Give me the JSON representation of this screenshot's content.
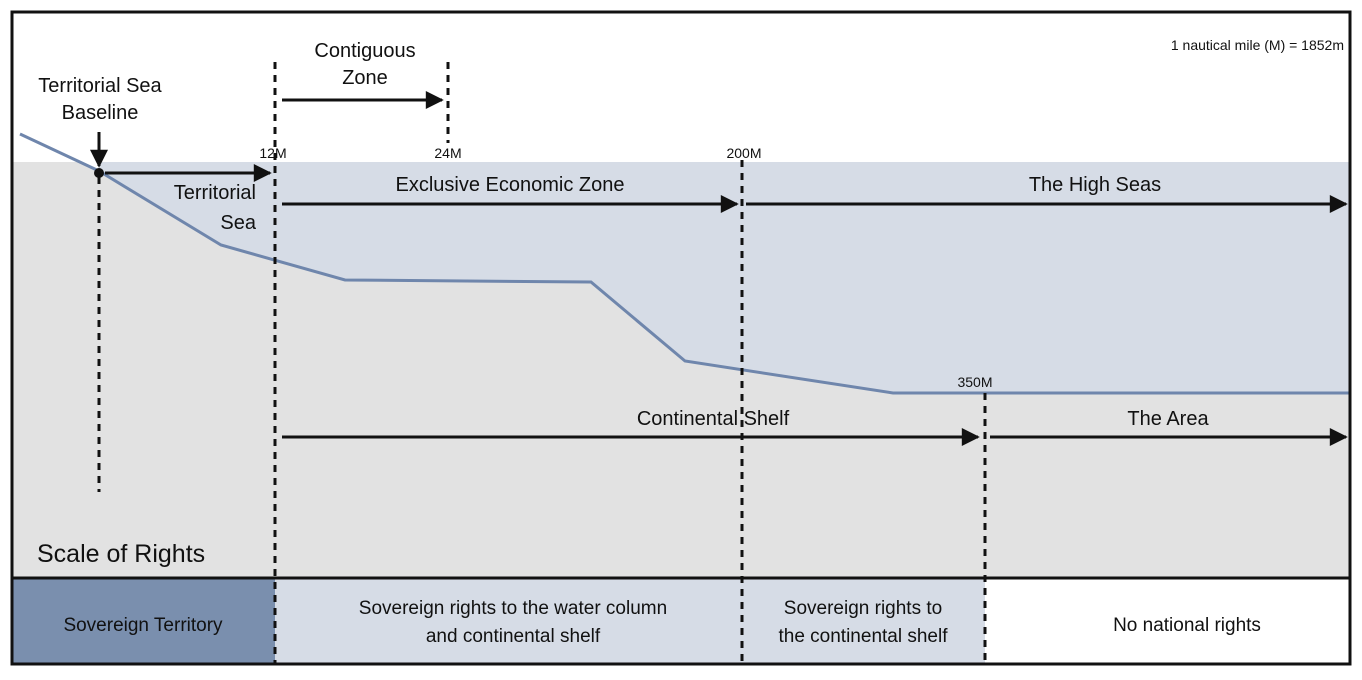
{
  "scale_note": "1 nautical mile (M) = 1852m",
  "baseline_label": [
    "Territorial Sea",
    "Baseline"
  ],
  "contiguous_label": [
    "Contiguous",
    "Zone"
  ],
  "markers": {
    "m12": "12M",
    "m24": "24M",
    "m200": "200M",
    "m350": "350M"
  },
  "zones": {
    "territorial_sea": [
      "Territorial",
      "Sea"
    ],
    "eez": "Exclusive Economic Zone",
    "high_seas": "The High Seas",
    "continental_shelf": "Continental Shelf",
    "the_area": "The Area"
  },
  "scale_of_rights": "Scale of Rights",
  "rights": {
    "sovereign_territory": "Sovereign Territory",
    "water_column": [
      "Sovereign rights to the water column",
      "and continental shelf"
    ],
    "continental_shelf": [
      "Sovereign rights to",
      "the continental shelf"
    ],
    "none": "No national rights"
  },
  "colors": {
    "sea": "#d6dce6",
    "seabed": "#e2e2e2",
    "sovereign": "#7a8fae",
    "profile_line": "#6f86ac"
  }
}
